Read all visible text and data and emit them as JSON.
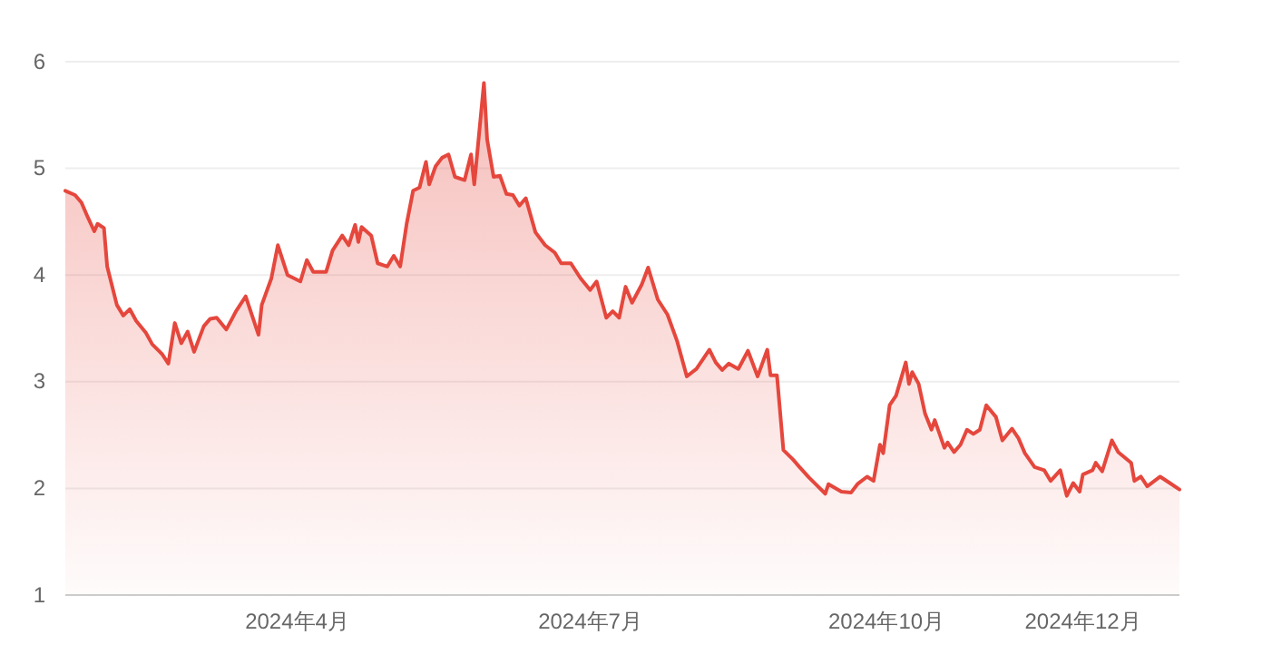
{
  "chart_data": {
    "type": "area",
    "xlim": [
      "2024-01-20",
      "2024-12-31"
    ],
    "xticks": [
      {
        "value": "2024-04-01",
        "label": "2024年4月"
      },
      {
        "value": "2024-07-01",
        "label": "2024年7月"
      },
      {
        "value": "2024-10-01",
        "label": "2024年10月"
      },
      {
        "value": "2024-12-01",
        "label": "2024年12月"
      }
    ],
    "ylim": [
      1,
      6
    ],
    "yticks": [
      1,
      2,
      3,
      4,
      5,
      6
    ],
    "grid": "y",
    "series": [
      {
        "color": "#e5473d",
        "x": [
          "2024-01-20",
          "2024-01-23",
          "2024-01-25",
          "2024-01-27",
          "2024-01-29",
          "2024-01-30",
          "2024-02-01",
          "2024-02-02",
          "2024-02-05",
          "2024-02-07",
          "2024-02-09",
          "2024-02-11",
          "2024-02-14",
          "2024-02-16",
          "2024-02-18",
          "2024-02-19",
          "2024-02-21",
          "2024-02-23",
          "2024-02-25",
          "2024-02-27",
          "2024-02-29",
          "2024-03-03",
          "2024-03-05",
          "2024-03-07",
          "2024-03-10",
          "2024-03-13",
          "2024-03-16",
          "2024-03-20",
          "2024-03-21",
          "2024-03-24",
          "2024-03-26",
          "2024-03-29",
          "2024-04-02",
          "2024-04-04",
          "2024-04-06",
          "2024-04-10",
          "2024-04-12",
          "2024-04-15",
          "2024-04-17",
          "2024-04-19",
          "2024-04-20",
          "2024-04-21",
          "2024-04-24",
          "2024-04-26",
          "2024-04-29",
          "2024-05-01",
          "2024-05-03",
          "2024-05-05",
          "2024-05-07",
          "2024-05-09",
          "2024-05-11",
          "2024-05-12",
          "2024-05-14",
          "2024-05-16",
          "2024-05-18",
          "2024-05-20",
          "2024-05-23",
          "2024-05-25",
          "2024-05-26",
          "2024-05-29",
          "2024-05-30",
          "2024-06-01",
          "2024-06-03",
          "2024-06-05",
          "2024-06-07",
          "2024-06-09",
          "2024-06-11",
          "2024-06-14",
          "2024-06-17",
          "2024-06-20",
          "2024-06-22",
          "2024-06-25",
          "2024-06-28",
          "2024-07-01",
          "2024-07-03",
          "2024-07-06",
          "2024-07-08",
          "2024-07-10",
          "2024-07-12",
          "2024-07-14",
          "2024-07-17",
          "2024-07-19",
          "2024-07-22",
          "2024-07-25",
          "2024-07-28",
          "2024-07-31",
          "2024-08-03",
          "2024-08-05",
          "2024-08-07",
          "2024-08-09",
          "2024-08-11",
          "2024-08-13",
          "2024-08-16",
          "2024-08-19",
          "2024-08-22",
          "2024-08-25",
          "2024-08-26",
          "2024-08-28",
          "2024-08-30",
          "2024-09-02",
          "2024-09-04",
          "2024-09-07",
          "2024-09-09",
          "2024-09-12",
          "2024-09-13",
          "2024-09-17",
          "2024-09-20",
          "2024-09-22",
          "2024-09-25",
          "2024-09-27",
          "2024-09-29",
          "2024-09-30",
          "2024-10-02",
          "2024-10-04",
          "2024-10-07",
          "2024-10-08",
          "2024-10-09",
          "2024-10-11",
          "2024-10-13",
          "2024-10-15",
          "2024-10-16",
          "2024-10-19",
          "2024-10-20",
          "2024-10-22",
          "2024-10-24",
          "2024-10-26",
          "2024-10-28",
          "2024-10-30",
          "2024-11-01",
          "2024-11-04",
          "2024-11-06",
          "2024-11-09",
          "2024-11-11",
          "2024-11-13",
          "2024-11-16",
          "2024-11-19",
          "2024-11-21",
          "2024-11-24",
          "2024-11-26",
          "2024-11-28",
          "2024-11-30",
          "2024-12-01",
          "2024-12-04",
          "2024-12-05",
          "2024-12-07",
          "2024-12-10",
          "2024-12-12",
          "2024-12-16",
          "2024-12-17",
          "2024-12-19",
          "2024-12-21",
          "2024-12-25",
          "2024-12-28",
          "2024-12-31"
        ],
        "values": [
          4.79,
          4.75,
          4.68,
          4.54,
          4.41,
          4.48,
          4.44,
          4.08,
          3.72,
          3.62,
          3.68,
          3.57,
          3.46,
          3.35,
          3.29,
          3.26,
          3.17,
          3.55,
          3.36,
          3.47,
          3.28,
          3.52,
          3.59,
          3.6,
          3.49,
          3.66,
          3.8,
          3.44,
          3.72,
          3.97,
          4.28,
          4.0,
          3.94,
          4.14,
          4.03,
          4.03,
          4.23,
          4.37,
          4.28,
          4.47,
          4.31,
          4.45,
          4.37,
          4.11,
          4.08,
          4.18,
          4.08,
          4.48,
          4.79,
          4.82,
          5.06,
          4.85,
          5.02,
          5.1,
          5.13,
          4.92,
          4.89,
          5.13,
          4.85,
          5.8,
          5.27,
          4.92,
          4.93,
          4.76,
          4.75,
          4.65,
          4.72,
          4.4,
          4.28,
          4.21,
          4.11,
          4.11,
          3.97,
          3.86,
          3.94,
          3.6,
          3.66,
          3.6,
          3.89,
          3.74,
          3.91,
          4.07,
          3.77,
          3.63,
          3.38,
          3.05,
          3.12,
          3.21,
          3.3,
          3.18,
          3.11,
          3.17,
          3.12,
          3.29,
          3.05,
          3.3,
          3.06,
          3.06,
          2.36,
          2.27,
          2.2,
          2.1,
          2.04,
          1.95,
          2.04,
          1.97,
          1.96,
          2.04,
          2.11,
          2.07,
          2.41,
          2.33,
          2.78,
          2.87,
          3.18,
          2.98,
          3.09,
          2.98,
          2.7,
          2.55,
          2.64,
          2.38,
          2.43,
          2.34,
          2.41,
          2.55,
          2.51,
          2.55,
          2.78,
          2.67,
          2.45,
          2.56,
          2.47,
          2.33,
          2.2,
          2.17,
          2.07,
          2.17,
          1.93,
          2.05,
          1.97,
          2.13,
          2.17,
          2.24,
          2.16,
          2.45,
          2.34,
          2.24,
          2.07,
          2.11,
          2.02,
          2.11,
          2.05,
          1.99
        ]
      }
    ]
  }
}
